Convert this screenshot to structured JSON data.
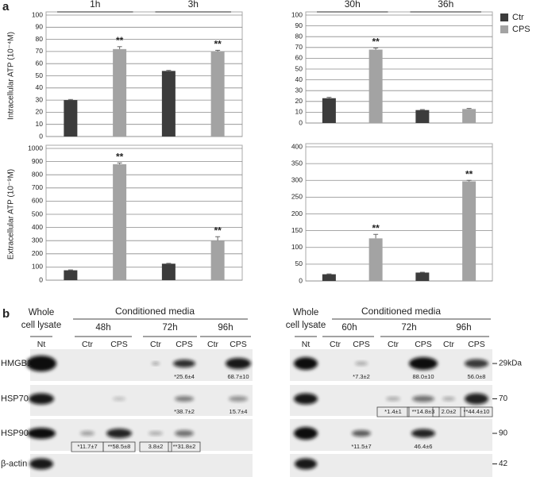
{
  "panel_labels": [
    "a",
    "b"
  ],
  "chart_data": [
    {
      "type": "bar",
      "ylabel": "Intracellular ATP (10⁻⁴M)",
      "categories": [
        "1h",
        "3h"
      ],
      "series": [
        {
          "name": "Ctr",
          "color": "#3c3c3c",
          "values": [
            30,
            54
          ],
          "errors": [
            0.5,
            0.5
          ]
        },
        {
          "name": "CPS",
          "color": "#a3a3a3",
          "values": [
            72,
            70
          ],
          "errors": [
            2,
            1
          ],
          "significance": [
            "**",
            "**"
          ]
        }
      ],
      "ylim": [
        0,
        100
      ],
      "yticks": [
        0,
        10,
        20,
        30,
        40,
        50,
        60,
        70,
        80,
        90,
        100
      ],
      "grid": true
    },
    {
      "type": "bar",
      "categories": [
        "30h",
        "36h"
      ],
      "legend": "right",
      "series": [
        {
          "name": "Ctr",
          "color": "#3c3c3c",
          "values": [
            23,
            12
          ],
          "errors": [
            0.8,
            0.5
          ]
        },
        {
          "name": "CPS",
          "color": "#a3a3a3",
          "values": [
            68,
            13
          ],
          "errors": [
            1.5,
            0.5
          ],
          "significance": [
            "**",
            null
          ]
        }
      ],
      "ylim": [
        0,
        100
      ],
      "yticks": [
        0,
        10,
        20,
        30,
        40,
        50,
        60,
        70,
        80,
        90,
        100
      ],
      "grid": true
    },
    {
      "type": "bar",
      "ylabel": "Extracellular ATP (10⁻⁹M)",
      "series": [
        {
          "name": "Ctr",
          "color": "#3c3c3c",
          "values": [
            75,
            125
          ],
          "errors": [
            3,
            3
          ]
        },
        {
          "name": "CPS",
          "color": "#a3a3a3",
          "values": [
            880,
            300
          ],
          "errors": [
            10,
            30
          ],
          "significance": [
            "**",
            "**"
          ]
        }
      ],
      "ylim": [
        0,
        1000
      ],
      "yticks": [
        0,
        100,
        200,
        300,
        400,
        500,
        600,
        700,
        800,
        900,
        1000
      ],
      "grid": true
    },
    {
      "type": "bar",
      "series": [
        {
          "name": "Ctr",
          "color": "#3c3c3c",
          "values": [
            20,
            25
          ],
          "errors": [
            1,
            1
          ]
        },
        {
          "name": "CPS",
          "color": "#a3a3a3",
          "values": [
            127,
            297
          ],
          "errors": [
            12,
            3
          ],
          "significance": [
            "**",
            "**"
          ]
        }
      ],
      "ylim": [
        0,
        400
      ],
      "yticks": [
        0,
        50,
        100,
        150,
        200,
        250,
        300,
        350,
        400
      ],
      "grid": true
    }
  ],
  "blots": [
    {
      "header": "Whole",
      "header2": "cell lysate",
      "media": "Conditioned media",
      "times": [
        "48h",
        "72h",
        "96h"
      ],
      "lanes": [
        "Nt",
        "Ctr",
        "CPS",
        "Ctr",
        "CPS",
        "Ctr",
        "CPS"
      ],
      "rows": [
        {
          "name": "HMGB1",
          "quant": [
            null,
            null,
            null,
            null,
            "*25.6±4",
            null,
            "68.7±10"
          ]
        },
        {
          "name": "HSP70",
          "quant": [
            null,
            null,
            null,
            null,
            "*38.7±2",
            null,
            "15.7±4"
          ]
        },
        {
          "name": "HSP90",
          "boxed": true,
          "quant": [
            null,
            "*11.7±7",
            "**58.5±8",
            "3.8±2",
            "**31.8±2",
            null,
            null
          ]
        },
        {
          "name": "β-actin"
        }
      ]
    },
    {
      "header": "Whole",
      "header2": "cell lysate",
      "media": "Conditioned media",
      "times": [
        "60h",
        "72h",
        "96h"
      ],
      "lanes": [
        "Nt",
        "Ctr",
        "CPS",
        "Ctr",
        "CPS",
        "Ctr",
        "CPS"
      ],
      "rows": [
        {
          "marker": "29kDa",
          "quant": [
            null,
            null,
            "*7.3±2",
            null,
            "88.0±10",
            null,
            "56.0±8"
          ]
        },
        {
          "marker": "70",
          "boxed": true,
          "quant": [
            null,
            null,
            null,
            "*1.4±1",
            "**14.8±3",
            "2.0±2",
            "**44.4±10"
          ]
        },
        {
          "marker": "90",
          "quant": [
            null,
            null,
            "*11.5±7",
            null,
            "46.4±6",
            null,
            null
          ]
        },
        {
          "marker": "42"
        }
      ]
    }
  ]
}
